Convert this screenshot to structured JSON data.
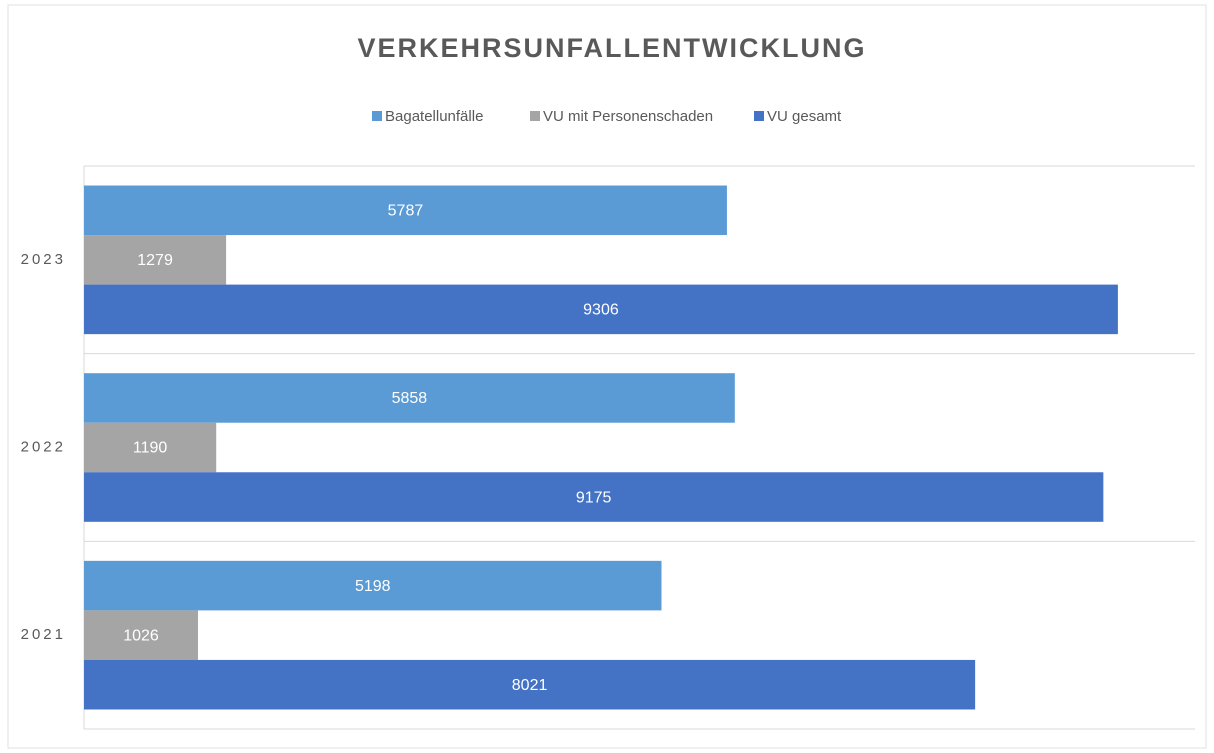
{
  "chart_data": {
    "type": "hbar",
    "title": "VERKEHRSUNFALLENTWICKLUNG",
    "categories": [
      "2021",
      "2022",
      "2023"
    ],
    "series": [
      {
        "name": "Bagatellunfälle",
        "color": "#5b9bd5",
        "values": [
          5198,
          5858,
          5787
        ]
      },
      {
        "name": "VU mit Personenschaden",
        "color": "#a5a5a5",
        "values": [
          1026,
          1190,
          1279
        ]
      },
      {
        "name": "VU gesamt",
        "color": "#4472c4",
        "values": [
          8021,
          9175,
          9306
        ]
      }
    ],
    "xlim": [
      0,
      10000
    ],
    "legend": "top",
    "data_labels": true
  }
}
